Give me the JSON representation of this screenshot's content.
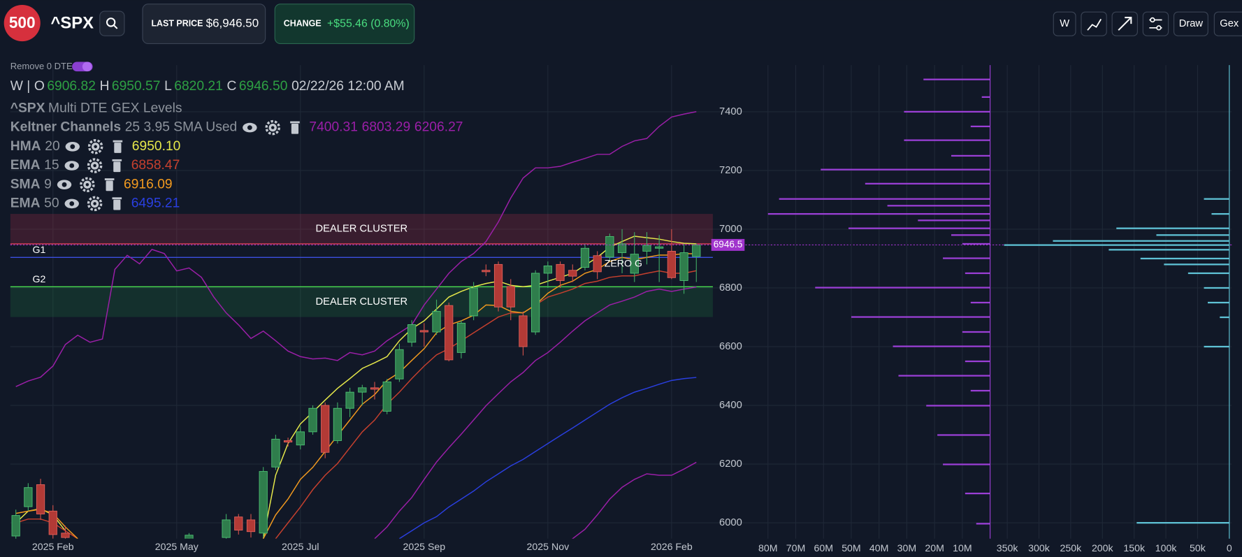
{
  "header": {
    "logo": "500",
    "symbol": "^SPX",
    "last_price_label": "LAST PRICE",
    "last_price": "$6,946.50",
    "change_label": "CHANGE",
    "change": "+$55.46 (0.80%)",
    "buttons": [
      "W",
      "Draw",
      "Gex"
    ]
  },
  "remove_0dte": "Remove 0 DTE",
  "legend": {
    "interval": "W |",
    "ohlc": [
      {
        "key": "O",
        "value": "6906.82"
      },
      {
        "key": "H",
        "value": "6950.57"
      },
      {
        "key": "L",
        "value": "6820.21"
      },
      {
        "key": "C",
        "value": "6946.50"
      }
    ],
    "time": "02/22/26 12:00 AM",
    "study": {
      "name": "^SPX",
      "params": "Multi DTE GEX Levels"
    }
  },
  "chart_data": [
    {
      "type": "candlestick",
      "categories": [
        null,
        null,
        null,
        "2025 Feb",
        null,
        null,
        null,
        null,
        null,
        null,
        null,
        null,
        null,
        "2025 May",
        null,
        null,
        null,
        null,
        null,
        null,
        null,
        null,
        null,
        "2025 Jul",
        null,
        null,
        null,
        null,
        null,
        null,
        null,
        null,
        null,
        "2025 Sep",
        null,
        null,
        null,
        null,
        null,
        null,
        null,
        null,
        null,
        "2025 Nov",
        null,
        null,
        null,
        null,
        null,
        null,
        null,
        null,
        null,
        "2026 Feb",
        null,
        null
      ],
      "candles": {
        "open": [
          5955,
          6055,
          6130,
          6040,
          5965,
          null,
          null,
          null,
          null,
          null,
          null,
          null,
          null,
          null,
          5940,
          null,
          null,
          5950,
          6020,
          6010,
          5965,
          6190,
          6280,
          6265,
          6310,
          6400,
          6280,
          6390,
          6445,
          6460,
          6380,
          6490,
          6615,
          6655,
          6650,
          6740,
          6580,
          6705,
          6860,
          6880,
          6805,
          6705,
          6650,
          6850,
          6880,
          6860,
          6870,
          6910,
          6905,
          6920,
          6850,
          6925,
          6935,
          6925,
          6825,
          6906.82
        ],
        "high": [
          6045,
          6135,
          6150,
          6060,
          5990,
          null,
          null,
          null,
          null,
          null,
          null,
          null,
          null,
          null,
          5965,
          null,
          null,
          6030,
          6030,
          6030,
          6190,
          6300,
          6290,
          6330,
          6400,
          6410,
          6410,
          6460,
          6470,
          6480,
          6490,
          6610,
          6690,
          6680,
          6760,
          6750,
          6690,
          6820,
          6880,
          6890,
          6830,
          6720,
          6860,
          6890,
          6890,
          6880,
          6950,
          6925,
          6985,
          7000,
          6990,
          6990,
          6980,
          7000,
          6950,
          6950.57
        ],
        "low": [
          5945,
          6040,
          6010,
          5946,
          5940,
          null,
          null,
          null,
          null,
          null,
          null,
          null,
          null,
          null,
          5930,
          null,
          null,
          5945,
          5960,
          5950,
          5950,
          6180,
          6260,
          6250,
          6300,
          6220,
          6270,
          6360,
          6400,
          6420,
          6370,
          6480,
          6600,
          6600,
          6640,
          6550,
          6560,
          6690,
          6840,
          6720,
          6690,
          6570,
          6640,
          6800,
          6800,
          6820,
          6860,
          6830,
          6890,
          6850,
          6820,
          6880,
          6820,
          6830,
          6780,
          6820.21
        ],
        "close": [
          6025,
          6120,
          6030,
          5960,
          5950,
          null,
          null,
          null,
          null,
          null,
          null,
          null,
          null,
          null,
          5958,
          null,
          null,
          6010,
          5975,
          5970,
          6175,
          6285,
          6275,
          6310,
          6390,
          6240,
          6390,
          6445,
          6460,
          6455,
          6480,
          6590,
          6675,
          6650,
          6720,
          6555,
          6680,
          6800,
          6855,
          6735,
          6735,
          6600,
          6850,
          6875,
          6825,
          6840,
          6935,
          6855,
          6975,
          6950,
          6915,
          6945,
          6940,
          6835,
          6920,
          6946.5
        ]
      },
      "up_color": "#2f7d4c",
      "down_color": "#b23a36",
      "ylim": [
        5946,
        7559
      ],
      "yticks": [
        6000,
        6200,
        6400,
        6600,
        6800,
        7000,
        7200,
        7400
      ],
      "grid": true,
      "indicators": [
        {
          "name": "Keltner Channels",
          "params": "25 3.95 SMA Used",
          "lines": [
            {
              "color": "#9b1fa8",
              "value_label": "7400.31",
              "values": [
                6464,
                6483,
                6496,
                6534,
                6607,
                6639,
                6615,
                6626,
                6863,
                6911,
                6882,
                6931,
                6917,
                6858,
                6868,
                6836,
                6769,
                6715,
                6674,
                6628,
                6653,
                6620,
                6585,
                6566,
                6558,
                6561,
                6553,
                6580,
                6572,
                6585,
                6620,
                6647,
                6674,
                6742,
                6796,
                6850,
                6890,
                6917,
                6958,
                7025,
                7106,
                7174,
                7209,
                7209,
                7214,
                7228,
                7241,
                7255,
                7255,
                7282,
                7301,
                7309,
                7350,
                7382,
                7392,
                7400.31
              ]
            },
            {
              "color": "#9b1fa8",
              "value_label": "6803.29",
              "values": [
                null,
                null,
                null,
                null,
                null,
                null,
                null,
                null,
                null,
                null,
                null,
                null,
                null,
                null,
                null,
                null,
                null,
                null,
                null,
                null,
                null,
                null,
                null,
                null,
                null,
                null,
                null,
                null,
                null,
                5946,
                5986,
                6040,
                6086,
                6148,
                6207,
                6256,
                6302,
                6350,
                6399,
                6440,
                6480,
                6512,
                6553,
                6580,
                6615,
                6653,
                6688,
                6715,
                6742,
                6755,
                6769,
                6788,
                6796,
                6788,
                6796,
                6803.29
              ]
            },
            {
              "color": "#9b1fa8",
              "value_label": "6206.27",
              "values": [
                null,
                null,
                null,
                null,
                null,
                null,
                null,
                null,
                null,
                null,
                null,
                null,
                null,
                null,
                null,
                null,
                null,
                null,
                null,
                null,
                null,
                null,
                null,
                null,
                null,
                null,
                null,
                null,
                null,
                null,
                null,
                null,
                null,
                null,
                null,
                null,
                null,
                null,
                null,
                null,
                null,
                null,
                null,
                null,
                5905,
                5946,
                5978,
                6027,
                6081,
                6121,
                6148,
                6167,
                6162,
                6162,
                6183,
                6206.27
              ]
            }
          ]
        },
        {
          "name": "HMA",
          "params": "20",
          "lines": [
            {
              "color": "#e6e84a",
              "value_label": "6950.10",
              "values": [
                6000,
                6040,
                6048,
                6027,
                5973,
                null,
                null,
                null,
                null,
                null,
                null,
                null,
                null,
                null,
                null,
                null,
                null,
                null,
                null,
                null,
                5946,
                6162,
                6270,
                6337,
                6377,
                6418,
                6458,
                6491,
                6526,
                6545,
                6566,
                6620,
                6661,
                6688,
                6728,
                6769,
                6788,
                6804,
                6815,
                6823,
                6809,
                6804,
                6809,
                6823,
                6836,
                6850,
                6877,
                6904,
                6939,
                6958,
                6976,
                6971,
                6966,
                6958,
                6952,
                6950.1
              ]
            }
          ]
        },
        {
          "name": "EMA",
          "params": "15",
          "lines": [
            {
              "color": "#c6402e",
              "value_label": "6858.47",
              "values": [
                6000,
                6013,
                6013,
                6000,
                5973,
                5946,
                null,
                null,
                null,
                null,
                null,
                null,
                null,
                null,
                null,
                null,
                null,
                null,
                null,
                null,
                null,
                5946,
                6000,
                6054,
                6113,
                6162,
                6202,
                6256,
                6310,
                6350,
                6404,
                6445,
                6491,
                6534,
                6572,
                6593,
                6620,
                6647,
                6674,
                6701,
                6715,
                6715,
                6742,
                6769,
                6782,
                6796,
                6815,
                6823,
                6836,
                6841,
                6841,
                6850,
                6858,
                6850,
                6850,
                6858.47
              ]
            }
          ]
        },
        {
          "name": "SMA",
          "params": "9",
          "lines": [
            {
              "color": "#f29a1f",
              "value_label": "6916.09",
              "values": [
                6032,
                6040,
                6046,
                6032,
                5986,
                5946,
                null,
                null,
                null,
                null,
                null,
                null,
                null,
                null,
                null,
                null,
                null,
                null,
                null,
                null,
                5946,
                6027,
                6081,
                6148,
                6189,
                6243,
                6297,
                6350,
                6404,
                6437,
                6485,
                6512,
                6553,
                6593,
                6647,
                6674,
                6688,
                6707,
                6742,
                6740,
                6720,
                6715,
                6742,
                6782,
                6809,
                6823,
                6850,
                6863,
                6890,
                6904,
                6896,
                6904,
                6912,
                6912,
                6917,
                6916.09
              ]
            }
          ]
        },
        {
          "name": "EMA",
          "params": "50",
          "lines": [
            {
              "color": "#2a3fe0",
              "value_label": "6495.21",
              "values": [
                null,
                null,
                null,
                null,
                null,
                null,
                null,
                null,
                null,
                null,
                null,
                null,
                null,
                null,
                null,
                null,
                null,
                null,
                null,
                null,
                null,
                null,
                null,
                null,
                null,
                null,
                null,
                null,
                null,
                null,
                null,
                5946,
                5973,
                6000,
                6021,
                6054,
                6081,
                6108,
                6140,
                6167,
                6194,
                6216,
                6243,
                6270,
                6297,
                6323,
                6350,
                6377,
                6404,
                6426,
                6445,
                6458,
                6472,
                6485,
                6491,
                6495.21
              ]
            }
          ]
        }
      ],
      "zones": [
        {
          "label": "DEALER CLUSTER",
          "from": 6950,
          "to": 7052,
          "color": "#c8344f"
        },
        {
          "label": "DEALER CLUSTER",
          "from": 6701,
          "to": 6804,
          "color": "#1f8a45"
        }
      ],
      "levels": [
        {
          "label": null,
          "value": 6950,
          "color": "#e0405a"
        },
        {
          "label": "G1",
          "value": 6904,
          "color": "#3b4fe0"
        },
        {
          "label": "G2",
          "value": 6804,
          "color": "#4ade50"
        }
      ],
      "zero_gamma_label": "ZERO G",
      "last_price": {
        "value": 6946.5,
        "label": "6946.5",
        "color": "#a033cc"
      }
    },
    {
      "type": "hbar",
      "color": "#9b3fd6",
      "levels": [
        7510,
        7450,
        7400,
        7350,
        7303,
        7250,
        7203,
        7155,
        7103,
        7080,
        7052,
        7030,
        7003,
        6980,
        6950,
        6901,
        6850,
        6801,
        6750,
        6701,
        6650,
        6601,
        6550,
        6501,
        6450,
        6399,
        6299,
        6199,
        6100,
        5997
      ],
      "values": [
        24,
        3,
        31,
        7,
        31,
        14,
        61,
        45,
        76,
        37,
        80,
        26,
        51,
        14,
        10,
        17,
        9,
        63,
        7,
        50,
        10,
        35,
        9,
        33,
        7,
        23,
        19,
        17,
        9,
        5
      ],
      "xlim": [
        87,
        0
      ],
      "xticks": [
        {
          "value": 80,
          "label": "80M"
        },
        {
          "value": 70,
          "label": "70M"
        },
        {
          "value": 60,
          "label": "60M"
        },
        {
          "value": 50,
          "label": "50M"
        },
        {
          "value": 40,
          "label": "40M"
        },
        {
          "value": 30,
          "label": "30M"
        },
        {
          "value": 20,
          "label": "20M"
        },
        {
          "value": 10,
          "label": "10M"
        }
      ]
    },
    {
      "type": "hbar",
      "color": "#5fc3d6",
      "levels": [
        7103,
        7052,
        7003,
        6980,
        6960,
        6946,
        6930,
        6900,
        6880,
        6850,
        6800,
        6750,
        6700,
        6600,
        6000
      ],
      "values": [
        40,
        28,
        178,
        115,
        278,
        355,
        190,
        140,
        103,
        65,
        40,
        34,
        15,
        40,
        146
      ],
      "xlim": [
        362,
        0
      ],
      "xticks": [
        {
          "value": 350,
          "label": "350k"
        },
        {
          "value": 300,
          "label": "300k"
        },
        {
          "value": 250,
          "label": "250k"
        },
        {
          "value": 200,
          "label": "200k"
        },
        {
          "value": 150,
          "label": "150k"
        },
        {
          "value": 100,
          "label": "100k"
        },
        {
          "value": 50,
          "label": "50k"
        },
        0
      ]
    }
  ]
}
